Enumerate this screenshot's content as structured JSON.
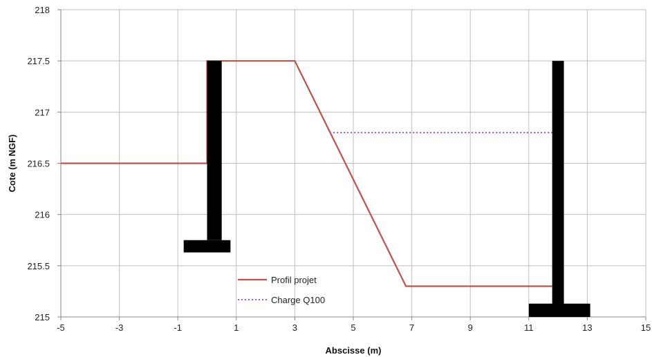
{
  "chart_data": {
    "type": "line",
    "title": "",
    "xlabel": "Abscisse (m)",
    "ylabel": "Cote (m NGF)",
    "xlim": [
      -5,
      15
    ],
    "ylim": [
      215,
      218
    ],
    "x_ticks": [
      -5,
      -3,
      -1,
      1,
      3,
      5,
      7,
      9,
      11,
      13,
      15
    ],
    "y_ticks": [
      215,
      215.5,
      216,
      216.5,
      217,
      217.5,
      218
    ],
    "x_tick_labels": [
      "-5",
      "-3",
      "-1",
      "1",
      "3",
      "5",
      "7",
      "9",
      "11",
      "13",
      "15"
    ],
    "y_tick_labels": [
      "215",
      "215.5",
      "216",
      "216.5",
      "217",
      "217.5",
      "218"
    ],
    "grid": true,
    "legend_position": "bottom-center",
    "series": [
      {
        "name": "Profil projet",
        "style": "solid",
        "color": "#c0504d",
        "x": [
          -5,
          0,
          0,
          3,
          6.8,
          11.8
        ],
        "y": [
          216.5,
          216.5,
          217.5,
          217.5,
          215.3,
          215.3
        ]
      },
      {
        "name": "Charge Q100",
        "style": "dotted",
        "color": "#9b59d0",
        "x": [
          4.2,
          11.8
        ],
        "y": [
          216.8,
          216.8
        ]
      }
    ],
    "walls": [
      {
        "name": "left-wall",
        "color": "#000000",
        "stem": {
          "x": [
            0,
            0.5
          ],
          "y": [
            215.75,
            217.5
          ]
        },
        "base": {
          "x": [
            -0.8,
            0.8
          ],
          "y": [
            215.63,
            215.75
          ]
        }
      },
      {
        "name": "right-wall",
        "color": "#000000",
        "stem": {
          "x": [
            11.8,
            12.2
          ],
          "y": [
            215.1,
            217.5
          ]
        },
        "base": {
          "x": [
            11,
            13.1
          ],
          "y": [
            215,
            215.13
          ]
        }
      }
    ]
  },
  "colors": {
    "background": "#ffffff",
    "grid": "#bfbfbf",
    "axis": "#888888",
    "text": "#222222"
  }
}
